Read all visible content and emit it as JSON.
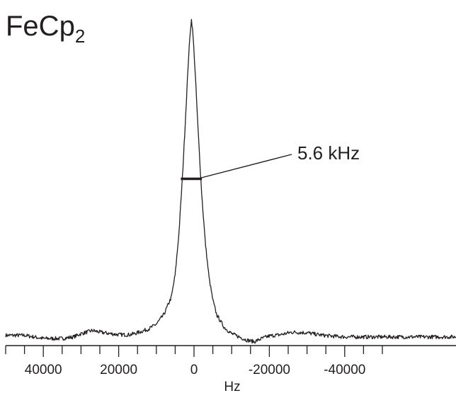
{
  "chart_data": {
    "type": "line",
    "title": "FeCp",
    "title_subscript": "2",
    "xlabel": "Hz",
    "ylabel": "",
    "x_reversed": true,
    "xlim": [
      50000,
      -50000
    ],
    "x_tick_labels": [
      "40000",
      "20000",
      "0",
      "-20000",
      "-40000"
    ],
    "x_tick_values": [
      40000,
      20000,
      0,
      -20000,
      -40000
    ],
    "x_minor_tick_step": 5000,
    "grid": false,
    "legend": "none",
    "annotation": {
      "text": "5.6 kHz",
      "fwhm_hz": 5600,
      "center_hz": 700
    },
    "series": [
      {
        "line_color": "#231f20",
        "x": [
          50000,
          45000,
          40000,
          35000,
          32000,
          30000,
          27000,
          25000,
          22000,
          20000,
          17000,
          15000,
          12000,
          10000,
          8000,
          6000,
          5000,
          4000,
          3000,
          2000,
          1500,
          1000,
          700,
          400,
          0,
          -500,
          -1000,
          -2000,
          -3000,
          -4000,
          -5000,
          -6000,
          -8000,
          -10000,
          -12000,
          -14000,
          -16000,
          -18000,
          -20000,
          -23000,
          -26000,
          -30000,
          -33000,
          -36000,
          -40000,
          -45000,
          -50000
        ],
        "y": [
          0.01,
          0.01,
          0.0,
          0.0,
          0.005,
          0.015,
          0.025,
          0.02,
          0.015,
          0.012,
          0.012,
          0.018,
          0.03,
          0.045,
          0.075,
          0.13,
          0.2,
          0.33,
          0.52,
          0.75,
          0.87,
          0.96,
          1.0,
          0.97,
          0.9,
          0.79,
          0.67,
          0.46,
          0.3,
          0.19,
          0.12,
          0.075,
          0.035,
          0.015,
          0.005,
          -0.005,
          -0.01,
          0.0,
          0.008,
          0.012,
          0.02,
          0.018,
          0.012,
          0.008,
          0.005,
          0.005,
          0.005
        ]
      }
    ]
  }
}
